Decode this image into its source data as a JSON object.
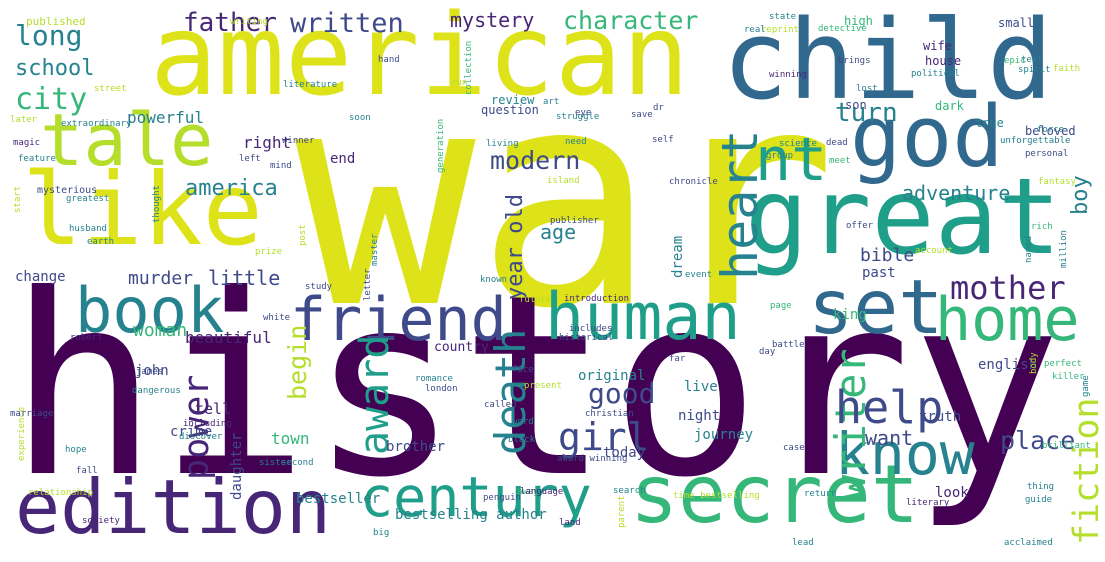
{
  "word_cloud": {
    "words": [
      {
        "text": "war",
        "color": "#dde318"
      },
      {
        "text": "history",
        "color": "#440154"
      },
      {
        "text": "american",
        "color": "#dde318"
      },
      {
        "text": "child",
        "color": "#31688e"
      },
      {
        "text": "great",
        "color": "#1f9e89"
      },
      {
        "text": "like",
        "color": "#dde318"
      },
      {
        "text": "tale",
        "color": "#b5de2b"
      },
      {
        "text": "god",
        "color": "#31688e"
      },
      {
        "text": "edition",
        "color": "#482677"
      },
      {
        "text": "secret",
        "color": "#35b779"
      },
      {
        "text": "human",
        "color": "#1f9e89"
      },
      {
        "text": "friend",
        "color": "#3e4a89"
      },
      {
        "text": "book",
        "color": "#26828e"
      },
      {
        "text": "set",
        "color": "#31688e"
      },
      {
        "text": "home",
        "color": "#35b779"
      },
      {
        "text": "know",
        "color": "#26828e"
      },
      {
        "text": "century",
        "color": "#1f9e89"
      },
      {
        "text": "heart",
        "color": "#26828e"
      },
      {
        "text": "nt",
        "color": "#1f9e89"
      },
      {
        "text": "death",
        "color": "#26828e"
      },
      {
        "text": "writer",
        "color": "#35b779"
      },
      {
        "text": "help",
        "color": "#3e4a89"
      },
      {
        "text": "fiction",
        "color": "#b5de2b"
      },
      {
        "text": "power",
        "color": "#482677"
      },
      {
        "text": "award",
        "color": "#1f9e89"
      },
      {
        "text": "girl",
        "color": "#3e4a89"
      },
      {
        "text": "mother",
        "color": "#482677"
      },
      {
        "text": "father",
        "color": "#482677"
      },
      {
        "text": "written",
        "color": "#3e4a89"
      },
      {
        "text": "character",
        "color": "#35b779"
      },
      {
        "text": "mystery",
        "color": "#482677"
      },
      {
        "text": "long",
        "color": "#26828e"
      },
      {
        "text": "school",
        "color": "#26828e"
      },
      {
        "text": "city",
        "color": "#35b779"
      },
      {
        "text": "modern",
        "color": "#3e4a89"
      },
      {
        "text": "begin",
        "color": "#b5de2b"
      },
      {
        "text": "good",
        "color": "#3e4a89"
      },
      {
        "text": "turn",
        "color": "#26828e"
      },
      {
        "text": "adventure",
        "color": "#26828e"
      },
      {
        "text": "america",
        "color": "#26828e"
      },
      {
        "text": "age",
        "color": "#26828e"
      },
      {
        "text": "year old",
        "color": "#3e4a89"
      },
      {
        "text": "want",
        "color": "#3e4a89"
      },
      {
        "text": "place",
        "color": "#3e4a89"
      },
      {
        "text": "boy",
        "color": "#26828e"
      },
      {
        "text": "bible",
        "color": "#3e4a89"
      },
      {
        "text": "little",
        "color": "#3e4a89"
      },
      {
        "text": "murder",
        "color": "#3e4a89"
      },
      {
        "text": "woman",
        "color": "#35b779"
      },
      {
        "text": "powerful",
        "color": "#26828e"
      },
      {
        "text": "right",
        "color": "#482677"
      },
      {
        "text": "end",
        "color": "#482677"
      },
      {
        "text": "beautiful",
        "color": "#482677"
      },
      {
        "text": "change",
        "color": "#3e4a89"
      },
      {
        "text": "john",
        "color": "#3e4a89"
      },
      {
        "text": "tell",
        "color": "#482677"
      },
      {
        "text": "crime",
        "color": "#3e4a89"
      },
      {
        "text": "brother",
        "color": "#3e4a89"
      },
      {
        "text": "town",
        "color": "#35b779"
      },
      {
        "text": "daughter",
        "color": "#3e4a89"
      },
      {
        "text": "today",
        "color": "#3e4a89"
      },
      {
        "text": "journey",
        "color": "#26828e"
      },
      {
        "text": "night",
        "color": "#3e4a89"
      },
      {
        "text": "live",
        "color": "#26828e"
      },
      {
        "text": "original",
        "color": "#26828e"
      },
      {
        "text": "truth",
        "color": "#3e4a89"
      },
      {
        "text": "look",
        "color": "#482677"
      },
      {
        "text": "bestseller",
        "color": "#26828e"
      },
      {
        "text": "bestselling author",
        "color": "#26828e"
      },
      {
        "text": "english",
        "color": "#3e4a89"
      },
      {
        "text": "king",
        "color": "#35b779"
      },
      {
        "text": "past",
        "color": "#3e4a89"
      },
      {
        "text": "dream",
        "color": "#26828e"
      },
      {
        "text": "country",
        "color": "#482677"
      },
      {
        "text": "review",
        "color": "#26828e"
      },
      {
        "text": "question",
        "color": "#3e4a89"
      },
      {
        "text": "house",
        "color": "#482677"
      },
      {
        "text": "wife",
        "color": "#482677"
      },
      {
        "text": "small",
        "color": "#3e4a89"
      },
      {
        "text": "high",
        "color": "#35b779"
      },
      {
        "text": "son",
        "color": "#3e4a89"
      },
      {
        "text": "dark",
        "color": "#35b779"
      },
      {
        "text": "true",
        "color": "#26828e"
      },
      {
        "text": "beloved",
        "color": "#3e4a89"
      },
      {
        "text": "published",
        "color": "#b5de2b"
      },
      {
        "text": "writing",
        "color": "#b5de2b"
      },
      {
        "text": "collection",
        "color": "#35b779"
      },
      {
        "text": "art",
        "color": "#26828e"
      },
      {
        "text": "struggle",
        "color": "#26828e"
      },
      {
        "text": "street",
        "color": "#b5de2b"
      },
      {
        "text": "literature",
        "color": "#26828e"
      },
      {
        "text": "run",
        "color": "#b5de2b"
      },
      {
        "text": "reprint",
        "color": "#b5de2b"
      },
      {
        "text": "detective",
        "color": "#35b779"
      },
      {
        "text": "real",
        "color": "#26828e"
      },
      {
        "text": "state",
        "color": "#26828e"
      },
      {
        "text": "hand",
        "color": "#3e4a89"
      },
      {
        "text": "winning",
        "color": "#482677"
      },
      {
        "text": "brings",
        "color": "#3e4a89"
      },
      {
        "text": "lost",
        "color": "#26828e"
      },
      {
        "text": "political",
        "color": "#26828e"
      },
      {
        "text": "epic",
        "color": "#35b779"
      },
      {
        "text": "text",
        "color": "#26828e"
      },
      {
        "text": "spirit",
        "color": "#26828e"
      },
      {
        "text": "faith",
        "color": "#b5de2b"
      },
      {
        "text": "winner",
        "color": "#3e4a89"
      },
      {
        "text": "soon",
        "color": "#26828e"
      },
      {
        "text": "eye",
        "color": "#3e4a89"
      },
      {
        "text": "dr",
        "color": "#3e4a89"
      },
      {
        "text": "save",
        "color": "#3e4a89"
      },
      {
        "text": "later",
        "color": "#b5de2b"
      },
      {
        "text": "magic",
        "color": "#482677"
      },
      {
        "text": "extraordinary",
        "color": "#26828e"
      },
      {
        "text": "left",
        "color": "#3e4a89"
      },
      {
        "text": "mind",
        "color": "#3e4a89"
      },
      {
        "text": "feature",
        "color": "#26828e"
      },
      {
        "text": "living",
        "color": "#26828e"
      },
      {
        "text": "need",
        "color": "#26828e"
      },
      {
        "text": "self",
        "color": "#3e4a89"
      },
      {
        "text": "science",
        "color": "#26828e"
      },
      {
        "text": "dead",
        "color": "#3e4a89"
      },
      {
        "text": "group",
        "color": "#26828e"
      },
      {
        "text": "meet",
        "color": "#35b779"
      },
      {
        "text": "force",
        "color": "#26828e"
      },
      {
        "text": "unforgettable",
        "color": "#26828e"
      },
      {
        "text": "personal",
        "color": "#3e4a89"
      },
      {
        "text": "mysterious",
        "color": "#3e4a89"
      },
      {
        "text": "greatest",
        "color": "#26828e"
      },
      {
        "text": "island",
        "color": "#b5de2b"
      },
      {
        "text": "chronicle",
        "color": "#3e4a89"
      },
      {
        "text": "fantasy",
        "color": "#b5de2b"
      },
      {
        "text": "start",
        "color": "#b5de2b"
      },
      {
        "text": "thought",
        "color": "#26828e"
      },
      {
        "text": "generation",
        "color": "#35b779"
      },
      {
        "text": "husband",
        "color": "#26828e"
      },
      {
        "text": "earth",
        "color": "#26828e"
      },
      {
        "text": "publisher",
        "color": "#3e4a89"
      },
      {
        "text": "offer",
        "color": "#3e4a89"
      },
      {
        "text": "rich",
        "color": "#35b779"
      },
      {
        "text": "account",
        "color": "#b5de2b"
      },
      {
        "text": "prize",
        "color": "#b5de2b"
      },
      {
        "text": "post",
        "color": "#b5de2b"
      },
      {
        "text": "master",
        "color": "#26828e"
      },
      {
        "text": "known",
        "color": "#26828e"
      },
      {
        "text": "event",
        "color": "#26828e"
      },
      {
        "text": "named",
        "color": "#26828e"
      },
      {
        "text": "million",
        "color": "#26828e"
      },
      {
        "text": "study",
        "color": "#3e4a89"
      },
      {
        "text": "letter",
        "color": "#3e4a89"
      },
      {
        "text": "future",
        "color": "#b5de2b"
      },
      {
        "text": "introduction",
        "color": "#482677"
      },
      {
        "text": "page",
        "color": "#35b779"
      },
      {
        "text": "white",
        "color": "#3e4a89"
      },
      {
        "text": "robert",
        "color": "#482677"
      },
      {
        "text": "includes",
        "color": "#3e4a89"
      },
      {
        "text": "historical",
        "color": "#3e4a89"
      },
      {
        "text": "battle",
        "color": "#3e4a89"
      },
      {
        "text": "day",
        "color": "#3e4a89"
      },
      {
        "text": "body",
        "color": "#b5de2b"
      },
      {
        "text": "perfect",
        "color": "#35b779"
      },
      {
        "text": "killer",
        "color": "#35b779"
      },
      {
        "text": "james",
        "color": "#3e4a89"
      },
      {
        "text": "dangerous",
        "color": "#26828e"
      },
      {
        "text": "far",
        "color": "#3e4a89"
      },
      {
        "text": "face",
        "color": "#3e4a89"
      },
      {
        "text": "present",
        "color": "#b5de2b"
      },
      {
        "text": "london",
        "color": "#3e4a89"
      },
      {
        "text": "romance",
        "color": "#26828e"
      },
      {
        "text": "called",
        "color": "#3e4a89"
      },
      {
        "text": "christian",
        "color": "#3e4a89"
      },
      {
        "text": "experience",
        "color": "#b5de2b"
      },
      {
        "text": "marriage",
        "color": "#3e4a89"
      },
      {
        "text": "including",
        "color": "#482677"
      },
      {
        "text": "discover",
        "color": "#26828e"
      },
      {
        "text": "word",
        "color": "#26828e"
      },
      {
        "text": "case",
        "color": "#3e4a89"
      },
      {
        "text": "brilliant",
        "color": "#35b779"
      },
      {
        "text": "game",
        "color": "#26828e"
      },
      {
        "text": "hope",
        "color": "#26828e"
      },
      {
        "text": "black",
        "color": "#26828e"
      },
      {
        "text": "award winning",
        "color": "#3e4a89"
      },
      {
        "text": "sister",
        "color": "#26828e"
      },
      {
        "text": "second",
        "color": "#26828e"
      },
      {
        "text": "fall",
        "color": "#3e4a89"
      },
      {
        "text": "relationship",
        "color": "#b5de2b"
      },
      {
        "text": "away",
        "color": "#35b779"
      },
      {
        "text": "penguin",
        "color": "#3e4a89"
      },
      {
        "text": "language",
        "color": "#482677"
      },
      {
        "text": "search",
        "color": "#26828e"
      },
      {
        "text": "time bestselling",
        "color": "#b5de2b"
      },
      {
        "text": "return",
        "color": "#26828e"
      },
      {
        "text": "thing",
        "color": "#26828e"
      },
      {
        "text": "literary",
        "color": "#482677"
      },
      {
        "text": "society",
        "color": "#482677"
      },
      {
        "text": "land",
        "color": "#482677"
      },
      {
        "text": "parent",
        "color": "#b5de2b"
      },
      {
        "text": "guide",
        "color": "#26828e"
      },
      {
        "text": "big",
        "color": "#26828e"
      },
      {
        "text": "lead",
        "color": "#26828e"
      },
      {
        "text": "acclaimed",
        "color": "#26828e"
      }
    ]
  }
}
